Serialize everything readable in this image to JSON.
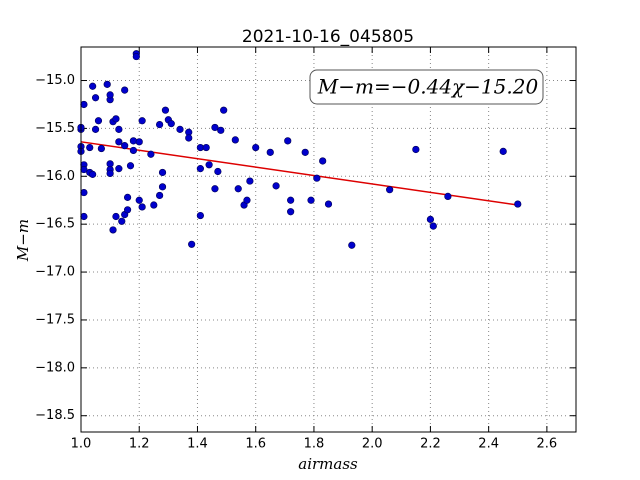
{
  "chart_data": {
    "type": "scatter",
    "title": "2021-10-16_045805",
    "x_label": "airmass",
    "y_label": "M−m",
    "annotation": "M−m=−0.44χ−15.20",
    "grid": true,
    "xlim": [
      1.0,
      2.7
    ],
    "ylim": [
      -18.67,
      -14.65
    ],
    "xticks": [
      {
        "value": 1.0,
        "label": "1.0"
      },
      {
        "value": 1.2,
        "label": "1.2"
      },
      {
        "value": 1.4,
        "label": "1.4"
      },
      {
        "value": 1.6,
        "label": "1.6"
      },
      {
        "value": 1.8,
        "label": "1.8"
      },
      {
        "value": 2.0,
        "label": "2.0"
      },
      {
        "value": 2.2,
        "label": "2.2"
      },
      {
        "value": 2.4,
        "label": "2.4"
      },
      {
        "value": 2.6,
        "label": "2.6"
      }
    ],
    "yticks": [
      {
        "value": -15.0,
        "label": "−15.0"
      },
      {
        "value": -15.5,
        "label": "−15.5"
      },
      {
        "value": -16.0,
        "label": "−16.0"
      },
      {
        "value": -16.5,
        "label": "−16.5"
      },
      {
        "value": -17.0,
        "label": "−17.0"
      },
      {
        "value": -17.5,
        "label": "−17.5"
      },
      {
        "value": -18.0,
        "label": "−18.0"
      },
      {
        "value": -18.5,
        "label": "−18.5"
      }
    ],
    "points": {
      "color": "#0000cc",
      "x": [
        1.0,
        1.0,
        1.0,
        1.0,
        1.01,
        1.01,
        1.01,
        1.01,
        1.01,
        1.03,
        1.03,
        1.04,
        1.04,
        1.05,
        1.05,
        1.06,
        1.07,
        1.09,
        1.1,
        1.1,
        1.1,
        1.1,
        1.1,
        1.11,
        1.11,
        1.12,
        1.12,
        1.13,
        1.13,
        1.13,
        1.14,
        1.15,
        1.15,
        1.15,
        1.16,
        1.16,
        1.17,
        1.18,
        1.18,
        1.19,
        1.19,
        1.2,
        1.2,
        1.21,
        1.21,
        1.24,
        1.25,
        1.27,
        1.27,
        1.28,
        1.28,
        1.29,
        1.3,
        1.31,
        1.34,
        1.37,
        1.37,
        1.38,
        1.41,
        1.41,
        1.41,
        1.43,
        1.44,
        1.46,
        1.46,
        1.47,
        1.48,
        1.49,
        1.53,
        1.54,
        1.56,
        1.57,
        1.58,
        1.6,
        1.65,
        1.67,
        1.71,
        1.72,
        1.72,
        1.77,
        1.79,
        1.81,
        1.83,
        1.85,
        1.93,
        2.06,
        2.15,
        2.2,
        2.21,
        2.26,
        2.45,
        2.5
      ],
      "y": [
        -15.51,
        -15.49,
        -15.69,
        -15.74,
        -15.88,
        -16.17,
        -16.42,
        -15.93,
        -15.25,
        -15.96,
        -15.7,
        -15.98,
        -15.06,
        -15.18,
        -15.51,
        -15.42,
        -15.71,
        -15.04,
        -15.2,
        -15.15,
        -15.87,
        -15.93,
        -15.97,
        -15.43,
        -16.56,
        -15.4,
        -16.42,
        -15.51,
        -15.64,
        -15.92,
        -16.47,
        -16.4,
        -15.68,
        -15.1,
        -16.22,
        -16.35,
        -15.89,
        -15.63,
        -15.73,
        -14.72,
        -14.75,
        -15.64,
        -16.25,
        -16.32,
        -15.42,
        -15.77,
        -16.3,
        -15.46,
        -16.2,
        -16.11,
        -15.96,
        -15.31,
        -15.41,
        -15.45,
        -15.51,
        -15.54,
        -15.6,
        -16.71,
        -15.92,
        -16.41,
        -15.7,
        -15.7,
        -15.88,
        -15.49,
        -16.13,
        -15.95,
        -15.52,
        -15.31,
        -15.62,
        -16.13,
        -16.3,
        -16.25,
        -16.05,
        -15.7,
        -15.75,
        -16.1,
        -15.63,
        -16.37,
        -16.25,
        -15.75,
        -16.25,
        -16.02,
        -15.84,
        -16.29,
        -16.72,
        -16.14,
        -15.72,
        -16.45,
        -16.52,
        -16.21,
        -15.74,
        -16.29
      ]
    },
    "fit": {
      "color": "#dd0000",
      "x": [
        1.0,
        2.5
      ],
      "y": [
        -15.64,
        -16.3
      ]
    }
  }
}
